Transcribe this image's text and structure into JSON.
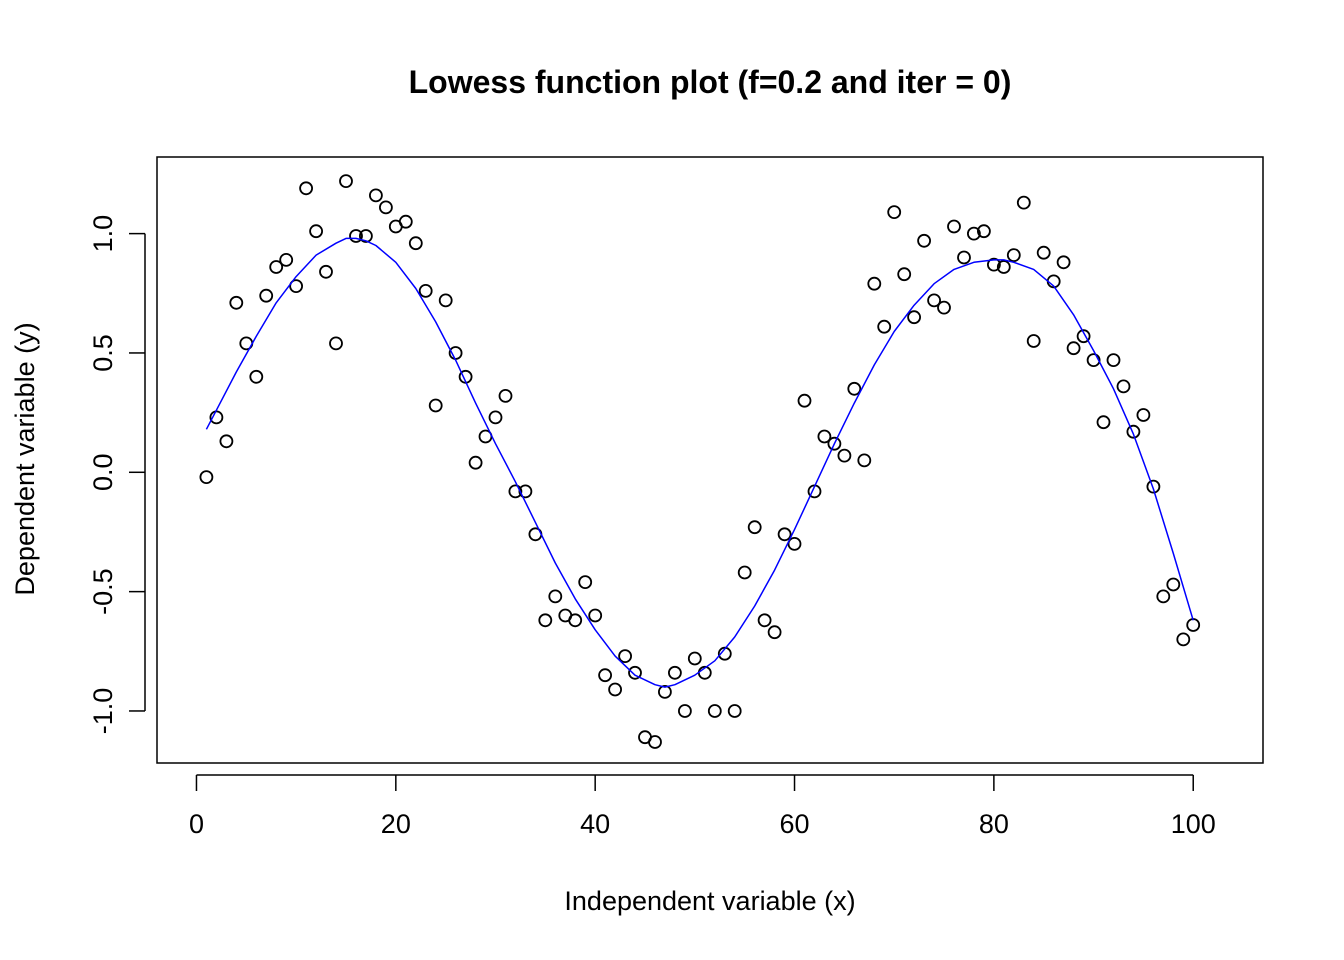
{
  "chart_data": {
    "type": "scatter",
    "title": "Lowess function plot (f=0.2 and iter = 0)",
    "xlabel": "Independent variable (x)",
    "ylabel": "Dependent variable (y)",
    "xlim": [
      -3.96,
      107.0
    ],
    "ylim": [
      -1.218,
      1.321
    ],
    "xticks": [
      0,
      20,
      40,
      60,
      80,
      100
    ],
    "xtick_labels": [
      "0",
      "20",
      "40",
      "60",
      "80",
      "100"
    ],
    "yticks": [
      -1.0,
      -0.5,
      0.0,
      0.5,
      1.0
    ],
    "ytick_labels": [
      "-1.0",
      "-0.5",
      "0.0",
      "0.5",
      "1.0"
    ],
    "grid": false,
    "point_style": "open-circle",
    "colors": {
      "points": "#000000",
      "smooth_line": "#0000ff",
      "frame": "#000000",
      "background": "#ffffff"
    },
    "series": [
      {
        "kind": "points",
        "x": [
          1,
          2,
          3,
          4,
          5,
          6,
          7,
          8,
          9,
          10,
          11,
          12,
          13,
          14,
          15,
          16,
          17,
          18,
          19,
          20,
          21,
          22,
          23,
          24,
          25,
          26,
          27,
          28,
          29,
          30,
          31,
          32,
          33,
          34,
          35,
          36,
          37,
          38,
          39,
          40,
          41,
          42,
          43,
          44,
          45,
          46,
          47,
          48,
          49,
          50,
          51,
          52,
          53,
          54,
          55,
          56,
          57,
          58,
          59,
          60,
          61,
          62,
          63,
          64,
          65,
          66,
          67,
          68,
          69,
          70,
          71,
          72,
          73,
          74,
          75,
          76,
          77,
          78,
          79,
          80,
          81,
          82,
          83,
          84,
          85,
          86,
          87,
          88,
          89,
          90,
          91,
          92,
          93,
          94,
          95,
          96,
          97,
          98,
          99,
          100
        ],
        "y": [
          -0.02,
          0.23,
          0.13,
          0.71,
          0.54,
          0.4,
          0.74,
          0.86,
          0.89,
          0.78,
          1.19,
          1.01,
          0.84,
          0.54,
          1.22,
          0.99,
          0.99,
          1.16,
          1.11,
          1.03,
          1.05,
          0.96,
          0.76,
          0.28,
          0.72,
          0.5,
          0.4,
          0.04,
          0.15,
          0.23,
          0.32,
          -0.08,
          -0.08,
          -0.26,
          -0.62,
          -0.52,
          -0.6,
          -0.62,
          -0.46,
          -0.6,
          -0.85,
          -0.91,
          -0.77,
          -0.84,
          -1.11,
          -1.13,
          -0.92,
          -0.84,
          -1.0,
          -0.78,
          -0.84,
          -1.0,
          -0.76,
          -1.0,
          -0.42,
          -0.23,
          -0.62,
          -0.67,
          -0.26,
          -0.3,
          0.3,
          -0.08,
          0.15,
          0.12,
          0.07,
          0.35,
          0.05,
          0.79,
          0.61,
          1.09,
          0.83,
          0.65,
          0.97,
          0.72,
          0.69,
          1.03,
          0.9,
          1.0,
          1.01,
          0.87,
          0.86,
          0.91,
          1.13,
          0.55,
          0.92,
          0.8,
          0.88,
          0.52,
          0.57,
          0.47,
          0.21,
          0.47,
          0.36,
          0.17,
          0.24,
          -0.06,
          -0.52,
          -0.47,
          -0.7,
          -0.64
        ]
      },
      {
        "kind": "line",
        "x": [
          1,
          2,
          4,
          6,
          8,
          10,
          12,
          14,
          15,
          16,
          17,
          18,
          20,
          22,
          24,
          26,
          28,
          30,
          32,
          34,
          36,
          38,
          40,
          42,
          44,
          46,
          47,
          48,
          50,
          52,
          54,
          56,
          58,
          60,
          62,
          64,
          66,
          68,
          70,
          72,
          74,
          76,
          78,
          80,
          81,
          82,
          84,
          86,
          88,
          90,
          92,
          94,
          96,
          98,
          100
        ],
        "y": [
          0.18,
          0.26,
          0.42,
          0.57,
          0.71,
          0.82,
          0.91,
          0.96,
          0.98,
          0.98,
          0.97,
          0.95,
          0.88,
          0.77,
          0.63,
          0.47,
          0.29,
          0.12,
          -0.04,
          -0.21,
          -0.38,
          -0.53,
          -0.66,
          -0.77,
          -0.85,
          -0.89,
          -0.9,
          -0.89,
          -0.85,
          -0.79,
          -0.69,
          -0.56,
          -0.41,
          -0.24,
          -0.06,
          0.12,
          0.29,
          0.45,
          0.59,
          0.7,
          0.79,
          0.85,
          0.88,
          0.89,
          0.89,
          0.88,
          0.85,
          0.78,
          0.66,
          0.51,
          0.35,
          0.16,
          -0.07,
          -0.34,
          -0.62
        ]
      }
    ]
  }
}
